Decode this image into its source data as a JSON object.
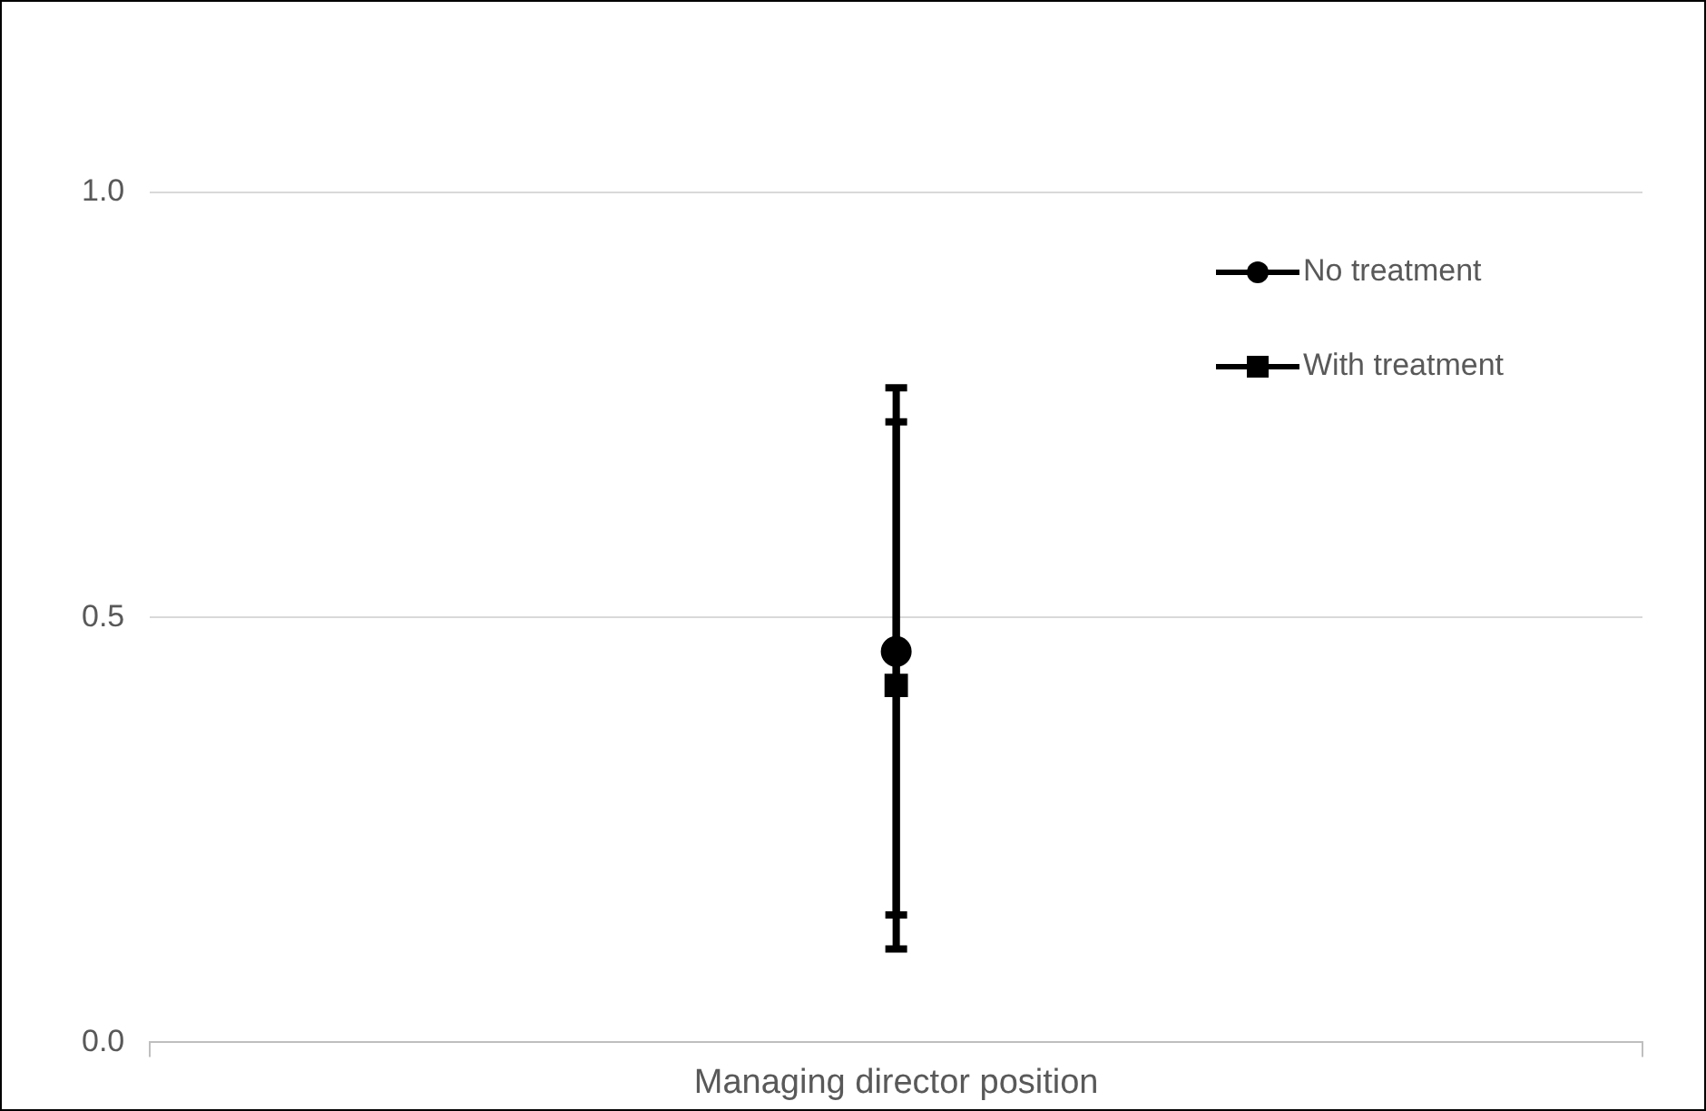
{
  "chart_data": {
    "type": "line",
    "categories": [
      "Managing director position"
    ],
    "series": [
      {
        "name": "No treatment",
        "color": "#000000",
        "marker": "circle",
        "values": [
          0.46
        ],
        "errors": [
          0.31
        ]
      },
      {
        "name": "With treatment",
        "color": "#000000",
        "marker": "square",
        "values": [
          0.42
        ],
        "errors": [
          0.31
        ]
      }
    ],
    "ylim": [
      0,
      1
    ],
    "yticks": [
      {
        "value": 0,
        "label": "0.0"
      },
      {
        "value": 0.5,
        "label": "0.5"
      },
      {
        "value": 1,
        "label": "1.0"
      }
    ],
    "grid": "y",
    "legend": "top right"
  }
}
